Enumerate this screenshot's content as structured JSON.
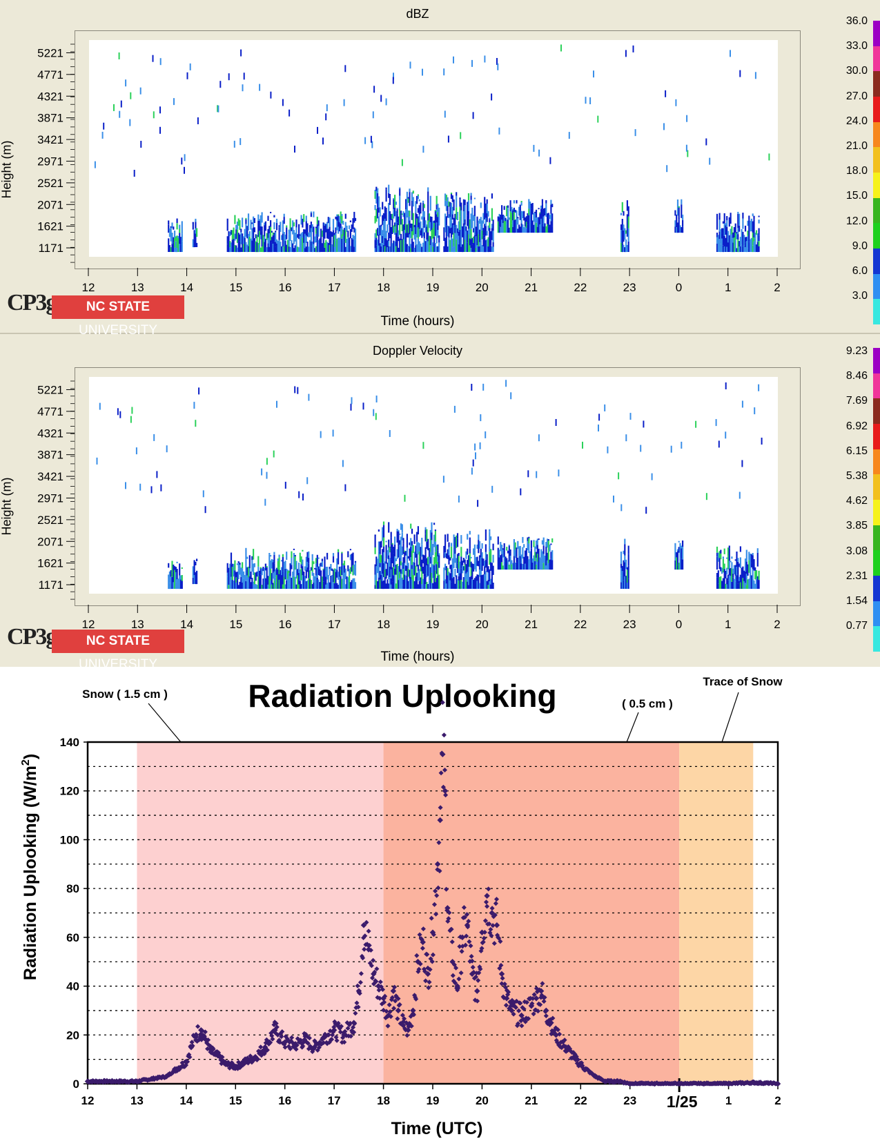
{
  "panels": [
    {
      "title": "dBZ",
      "ylabel": "Height (m)",
      "xlabel": "Time (hours)",
      "y_ticks": [
        "5221",
        "4771",
        "4321",
        "3871",
        "3421",
        "2971",
        "2521",
        "2071",
        "1621",
        "1171"
      ],
      "x_ticks": [
        "12",
        "13",
        "14",
        "15",
        "16",
        "17",
        "18",
        "19",
        "20",
        "21",
        "22",
        "23",
        "0",
        "1",
        "2"
      ],
      "colorbar_labels": [
        "36.0",
        "33.0",
        "30.0",
        "27.0",
        "24.0",
        "21.0",
        "18.0",
        "15.0",
        "12.0",
        "9.0",
        "6.0",
        "3.0"
      ]
    },
    {
      "title": "Doppler Velocity",
      "ylabel": "Height (m)",
      "xlabel": "Time (hours)",
      "y_ticks": [
        "5221",
        "4771",
        "4321",
        "3871",
        "3421",
        "2971",
        "2521",
        "2071",
        "1621",
        "1171"
      ],
      "x_ticks": [
        "12",
        "13",
        "14",
        "15",
        "16",
        "17",
        "18",
        "19",
        "20",
        "21",
        "22",
        "23",
        "0",
        "1",
        "2"
      ],
      "colorbar_labels": [
        "9.23",
        "8.46",
        "7.69",
        "6.92",
        "6.15",
        "5.38",
        "4.62",
        "3.85",
        "3.08",
        "2.31",
        "1.54",
        "0.77"
      ]
    }
  ],
  "logo": {
    "mark": "CP3g",
    "ncsu_bold": "NC STATE",
    "ncsu_rest": "UNIVERSITY"
  },
  "colors": {
    "bg_panel": "#ece9d8",
    "echo_light": "#3a8fe8",
    "echo_dark": "#0a1fc8",
    "echo_green": "#2bd15a",
    "shade_snow_heavy": "#fdd0d0",
    "shade_snow_light": "#fbb39f",
    "shade_trace": "#fdd6a6",
    "markers": "#3b1b6b",
    "colorbar": [
      "#9b00c4",
      "#f0359a",
      "#8b2a1e",
      "#e81a1a",
      "#f7871d",
      "#f2c01e",
      "#f6f21a",
      "#38b51f",
      "#1ed01e",
      "#1436d2",
      "#2f8ff2",
      "#38e8e0"
    ]
  },
  "chart_data": [
    {
      "type": "heatmap",
      "title": "dBZ",
      "xlabel": "Time (hours)",
      "ylabel": "Height (m)",
      "xlim": [
        12,
        26
      ],
      "ylim": [
        1000,
        5500
      ],
      "colorscale_range": [
        0,
        37.5
      ],
      "echo_regions": [
        {
          "t0": 13.6,
          "t1": 13.9,
          "h0": 1100,
          "h1": 1800,
          "value": 7
        },
        {
          "t0": 14.1,
          "t1": 14.2,
          "h0": 1200,
          "h1": 1800,
          "value": 7
        },
        {
          "t0": 14.8,
          "t1": 17.4,
          "h0": 1100,
          "h1": 1950,
          "value": 8
        },
        {
          "t0": 17.8,
          "t1": 19.1,
          "h0": 1100,
          "h1": 2500,
          "value": 10
        },
        {
          "t0": 19.2,
          "t1": 20.2,
          "h0": 1100,
          "h1": 2350,
          "value": 9
        },
        {
          "t0": 20.3,
          "t1": 21.4,
          "h0": 1500,
          "h1": 2200,
          "value": 6
        },
        {
          "t0": 22.8,
          "t1": 22.95,
          "h0": 1100,
          "h1": 2200,
          "value": 7
        },
        {
          "t0": 23.9,
          "t1": 24.05,
          "h0": 1500,
          "h1": 2200,
          "value": 7
        },
        {
          "t0": 24.75,
          "t1": 25.6,
          "h0": 1100,
          "h1": 2000,
          "value": 7
        }
      ]
    },
    {
      "type": "heatmap",
      "title": "Doppler Velocity",
      "xlabel": "Time (hours)",
      "ylabel": "Height (m)",
      "xlim": [
        12,
        26
      ],
      "ylim": [
        1000,
        5500
      ],
      "colorscale_range": [
        0,
        9.6
      ],
      "echo_regions": [
        {
          "t0": 13.6,
          "t1": 13.9,
          "h0": 1100,
          "h1": 1800,
          "value": 1.4
        },
        {
          "t0": 14.1,
          "t1": 14.2,
          "h0": 1200,
          "h1": 1800,
          "value": 1.4
        },
        {
          "t0": 14.8,
          "t1": 17.4,
          "h0": 1100,
          "h1": 1950,
          "value": 1.5
        },
        {
          "t0": 17.8,
          "t1": 19.1,
          "h0": 1100,
          "h1": 2500,
          "value": 1.2
        },
        {
          "t0": 19.2,
          "t1": 20.2,
          "h0": 1100,
          "h1": 2350,
          "value": 1.3
        },
        {
          "t0": 20.3,
          "t1": 21.4,
          "h0": 1500,
          "h1": 2200,
          "value": 1.2
        },
        {
          "t0": 22.8,
          "t1": 22.95,
          "h0": 1100,
          "h1": 2200,
          "value": 1.3
        },
        {
          "t0": 23.9,
          "t1": 24.05,
          "h0": 1500,
          "h1": 2200,
          "value": 1.3
        },
        {
          "t0": 24.75,
          "t1": 25.6,
          "h0": 1100,
          "h1": 2000,
          "value": 1.3
        }
      ]
    },
    {
      "type": "scatter",
      "title": "Radiation Uplooking",
      "xlabel": "Time (UTC)",
      "ylabel": "Radiation Uplooking (W/m²)",
      "xlim": [
        12,
        26
      ],
      "ylim": [
        0,
        140
      ],
      "grid": true,
      "x_ticks": [
        "12",
        "13",
        "14",
        "15",
        "16",
        "17",
        "18",
        "19",
        "20",
        "21",
        "22",
        "23",
        "1/25",
        "1",
        "2"
      ],
      "y_ticks": [
        0,
        20,
        40,
        60,
        80,
        100,
        120,
        140
      ],
      "shaded_periods": [
        {
          "x0": 13,
          "x1": 18,
          "label": "Snow ( 1.5 cm )"
        },
        {
          "x0": 18,
          "x1": 24,
          "label": "( 0.5 cm )"
        },
        {
          "x0": 24,
          "x1": 25.5,
          "label": "Trace of Snow"
        }
      ],
      "x": [
        12.0,
        12.5,
        13.0,
        13.3,
        13.6,
        13.8,
        14.0,
        14.1,
        14.2,
        14.3,
        14.4,
        14.5,
        14.6,
        14.8,
        15.0,
        15.2,
        15.4,
        15.6,
        15.8,
        16.0,
        16.2,
        16.4,
        16.6,
        16.8,
        17.0,
        17.2,
        17.4,
        17.5,
        17.6,
        17.7,
        17.8,
        17.9,
        18.0,
        18.1,
        18.2,
        18.3,
        18.4,
        18.5,
        18.6,
        18.7,
        18.8,
        18.9,
        19.0,
        19.1,
        19.15,
        19.2,
        19.25,
        19.3,
        19.4,
        19.5,
        19.6,
        19.7,
        19.8,
        19.9,
        20.0,
        20.1,
        20.2,
        20.3,
        20.4,
        20.5,
        20.6,
        20.8,
        21.0,
        21.1,
        21.2,
        21.3,
        21.4,
        21.5,
        21.7,
        21.9,
        22.1,
        22.3,
        22.5,
        22.8,
        23.0,
        23.5,
        24.0,
        24.5,
        25.0,
        25.5,
        26.0
      ],
      "y": [
        1,
        1,
        1,
        2,
        3,
        6,
        9,
        15,
        20,
        22,
        18,
        13,
        12,
        8,
        7,
        9,
        11,
        15,
        22,
        17,
        16,
        18,
        15,
        19,
        22,
        20,
        25,
        38,
        65,
        55,
        45,
        40,
        35,
        28,
        38,
        30,
        24,
        22,
        30,
        50,
        58,
        45,
        62,
        90,
        108,
        135,
        120,
        72,
        50,
        40,
        60,
        65,
        45,
        38,
        62,
        77,
        70,
        65,
        45,
        35,
        30,
        28,
        32,
        35,
        38,
        30,
        25,
        20,
        15,
        10,
        6,
        3,
        1,
        1,
        0,
        0,
        0,
        0,
        0,
        0.5,
        0
      ]
    }
  ],
  "radiation_chart": {
    "title": "Radiation Uplooking",
    "ylabel_main": "Radiation Uplooking (W/m",
    "ylabel_sup": "2",
    "ylabel_end": ")",
    "xlabel": "Time (UTC)",
    "annotations": [
      "Snow ( 1.5 cm )",
      "( 0.5 cm )",
      "Trace of Snow"
    ]
  }
}
